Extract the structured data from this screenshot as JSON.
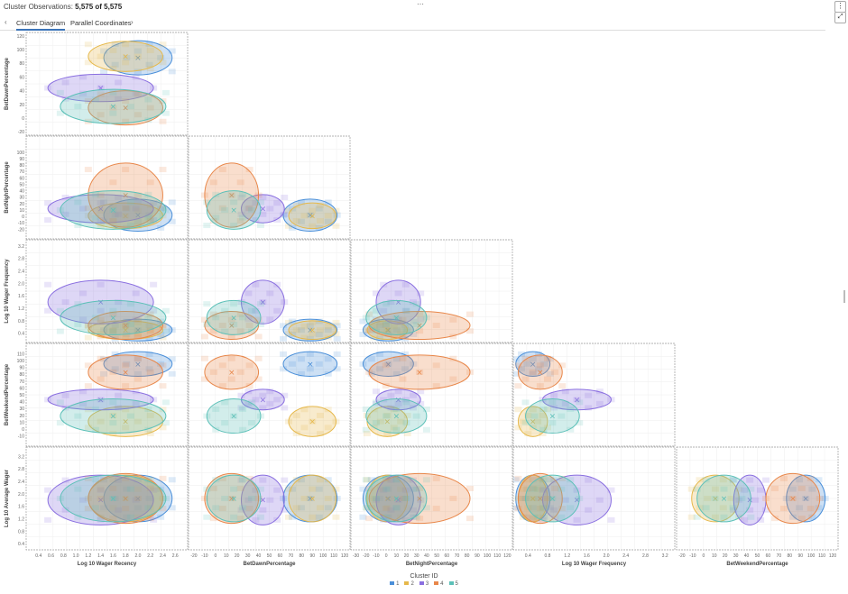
{
  "header": {
    "title_prefix": "Cluster  Observations: ",
    "title_count": "5,575 of 5,575",
    "menu_label": "⋮",
    "expand_label": "⤢"
  },
  "tabs": [
    {
      "label": "Cluster Diagram",
      "active": true
    },
    {
      "label": "Parallel Coordinates",
      "active": false
    }
  ],
  "colors": {
    "c1": "#4a8fd9",
    "c2": "#e6b84a",
    "c3": "#8a6fe0",
    "c4": "#e8874a",
    "c5": "#5cc0b8"
  },
  "chart_data": {
    "type": "scatter-matrix",
    "variables": [
      "Log 10 Wager Recency",
      "BetDawnPercentage",
      "BetNightPercentage",
      "Log 10 Wager Frequency",
      "BetWeekendPercentage",
      "Log 10 Average Wager"
    ],
    "row_labels": [
      "BetDawnPercentage",
      "BetNightPercentage",
      "Log 10 Wager Frequency",
      "BetWeekendPercentage",
      "Log 10 Average Wager"
    ],
    "col_labels": [
      "Log 10 Wager Recency",
      "BetDawnPercentage",
      "BetNightPercentage",
      "Log 10 Wager Frequency",
      "BetWeekendPercentage"
    ],
    "axes": {
      "Log 10 Wager Recency": {
        "min": 0.2,
        "max": 2.8,
        "ticks": [
          "0.4",
          "0.6",
          "0.8",
          "1.0",
          "1.2",
          "1.4",
          "1.6",
          "1.8",
          "2.0",
          "2.2",
          "2.4",
          "2.6"
        ]
      },
      "BetDawnPercentage": {
        "min": -25,
        "max": 125,
        "ticks": [
          "-20",
          "-10",
          "0",
          "10",
          "20",
          "30",
          "40",
          "50",
          "60",
          "70",
          "80",
          "90",
          "100",
          "110",
          "120"
        ],
        "yticks": [
          "-20",
          "0",
          "20",
          "40",
          "60",
          "80",
          "100",
          "120"
        ]
      },
      "BetNightPercentage": {
        "min": -35,
        "max": 125,
        "ticks": [
          "-30",
          "-20",
          "-10",
          "0",
          "10",
          "20",
          "30",
          "40",
          "50",
          "60",
          "70",
          "80",
          "90",
          "100",
          "110",
          "120"
        ],
        "yticks": [
          "-20",
          "-10",
          "0",
          "10",
          "20",
          "30",
          "40",
          "50",
          "60",
          "70",
          "80",
          "90",
          "100"
        ]
      },
      "Log 10 Wager Frequency": {
        "min": 0.1,
        "max": 3.4,
        "ticks": [
          "0.4",
          "0.8",
          "1.2",
          "1.6",
          "2.0",
          "2.4",
          "2.8",
          "3.2"
        ],
        "yticks": [
          "0.4",
          "0.8",
          "1.2",
          "1.6",
          "2.0",
          "2.4",
          "2.8",
          "3.2"
        ]
      },
      "BetWeekendPercentage": {
        "min": -25,
        "max": 125,
        "ticks": [
          "-20",
          "-10",
          "0",
          "10",
          "20",
          "30",
          "40",
          "50",
          "60",
          "70",
          "80",
          "90",
          "100",
          "110",
          "120"
        ],
        "yticks": [
          "-10",
          "0",
          "10",
          "20",
          "30",
          "40",
          "50",
          "60",
          "70",
          "80",
          "90",
          "100",
          "110"
        ]
      },
      "Log 10 Average Wager": {
        "min": 0.2,
        "max": 3.5,
        "yticks": [
          "0.4",
          "0.8",
          "1.2",
          "1.6",
          "2.0",
          "2.4",
          "2.8",
          "3.2"
        ]
      }
    },
    "clusters": [
      {
        "id": "1",
        "color": "#4a8fd9",
        "centroid": {
          "Log 10 Wager Recency": 2.0,
          "BetDawnPercentage": 88,
          "BetNightPercentage": 2,
          "Log 10 Wager Frequency": 0.5,
          "BetWeekendPercentage": 95,
          "Log 10 Average Wager": 1.85
        }
      },
      {
        "id": "2",
        "color": "#e6b84a",
        "centroid": {
          "Log 10 Wager Recency": 1.8,
          "BetDawnPercentage": 90,
          "BetNightPercentage": 1,
          "Log 10 Wager Frequency": 0.5,
          "BetWeekendPercentage": 11,
          "Log 10 Average Wager": 1.85
        }
      },
      {
        "id": "3",
        "color": "#8a6fe0",
        "centroid": {
          "Log 10 Wager Recency": 1.4,
          "BetDawnPercentage": 44,
          "BetNightPercentage": 12,
          "Log 10 Wager Frequency": 1.4,
          "BetWeekendPercentage": 43,
          "Log 10 Average Wager": 1.8
        }
      },
      {
        "id": "4",
        "color": "#e8874a",
        "centroid": {
          "Log 10 Wager Recency": 1.8,
          "BetDawnPercentage": 15,
          "BetNightPercentage": 33,
          "Log 10 Wager Frequency": 0.65,
          "BetWeekendPercentage": 83,
          "Log 10 Average Wager": 1.85
        }
      },
      {
        "id": "5",
        "color": "#5cc0b8",
        "centroid": {
          "Log 10 Wager Recency": 1.6,
          "BetDawnPercentage": 17,
          "BetNightPercentage": 10,
          "Log 10 Wager Frequency": 0.9,
          "BetWeekendPercentage": 19,
          "Log 10 Average Wager": 1.85
        }
      }
    ],
    "spread": {
      "1": {
        "Log 10 Wager Recency": 0.55,
        "BetDawnPercentage": 25,
        "BetNightPercentage": 25,
        "Log 10 Wager Frequency": 0.35,
        "BetWeekendPercentage": 18,
        "Log 10 Average Wager": 0.75
      },
      "2": {
        "Log 10 Wager Recency": 0.6,
        "BetDawnPercentage": 22,
        "BetNightPercentage": 20,
        "Log 10 Wager Frequency": 0.3,
        "BetWeekendPercentage": 22,
        "Log 10 Average Wager": 0.75
      },
      "3": {
        "Log 10 Wager Recency": 0.85,
        "BetDawnPercentage": 20,
        "BetNightPercentage": 22,
        "Log 10 Wager Frequency": 0.7,
        "BetWeekendPercentage": 15,
        "Log 10 Average Wager": 0.8
      },
      "4": {
        "Log 10 Wager Recency": 0.6,
        "BetDawnPercentage": 25,
        "BetNightPercentage": 50,
        "Log 10 Wager Frequency": 0.45,
        "BetWeekendPercentage": 25,
        "Log 10 Average Wager": 0.8
      },
      "5": {
        "Log 10 Wager Recency": 0.85,
        "BetDawnPercentage": 25,
        "BetNightPercentage": 30,
        "Log 10 Wager Frequency": 0.55,
        "BetWeekendPercentage": 25,
        "Log 10 Average Wager": 0.75
      }
    },
    "legend": {
      "title": "Cluster ID",
      "entries": [
        "1",
        "2",
        "3",
        "4",
        "5"
      ],
      "position": "bottom-center"
    },
    "grid": true
  }
}
